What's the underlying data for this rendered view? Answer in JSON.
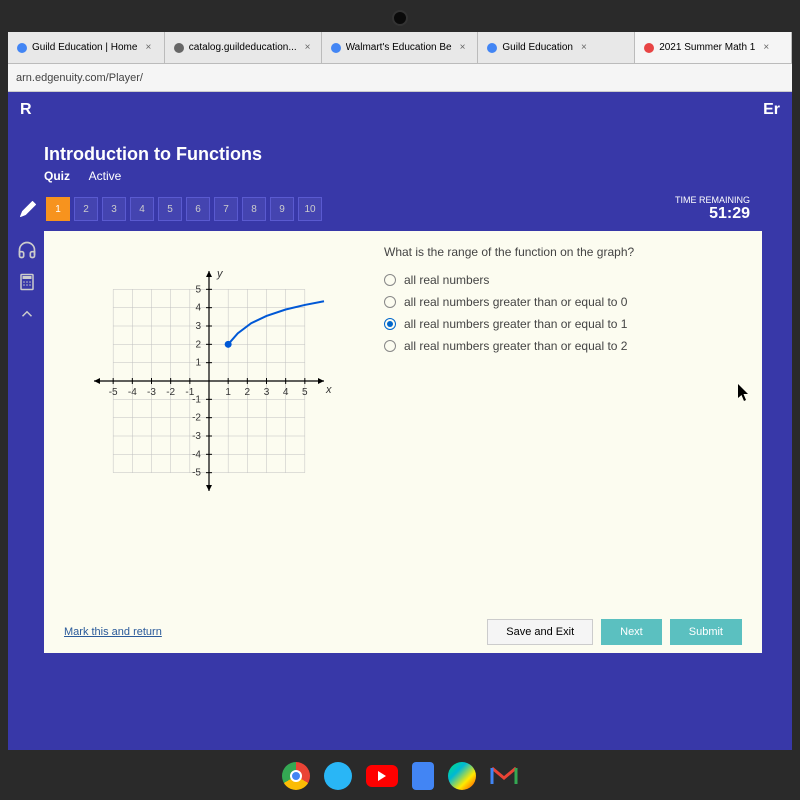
{
  "browser": {
    "tabs": [
      {
        "label": "Guild Education | Home",
        "icon_color": "#4285f4"
      },
      {
        "label": "catalog.guildeducation...",
        "icon_color": "#666"
      },
      {
        "label": "Walmart's Education Be",
        "icon_color": "#4285f4"
      },
      {
        "label": "Guild Education",
        "icon_color": "#4285f4"
      },
      {
        "label": "2021 Summer Math 1",
        "icon_color": "#e84545",
        "active": true
      }
    ],
    "url": "arn.edgenuity.com/Player/"
  },
  "navbar": {
    "left_label": "R",
    "right_label": "Er"
  },
  "quiz": {
    "title": "Introduction to Functions",
    "type_label": "Quiz",
    "status_label": "Active",
    "questions": [
      "1",
      "2",
      "3",
      "4",
      "5",
      "6",
      "7",
      "8",
      "9",
      "10"
    ],
    "current_question": 1,
    "timer_label": "TIME REMAINING",
    "timer_value": "51:29"
  },
  "graph": {
    "xmin": -6,
    "xmax": 6,
    "ymin": -6,
    "ymax": 6,
    "grid_color": "#c0c0c0",
    "axis_color": "#000000",
    "tick_labels_x": [
      -5,
      -4,
      -3,
      -2,
      -1,
      1,
      2,
      3,
      4,
      5
    ],
    "tick_labels_y": [
      -5,
      -4,
      -3,
      -2,
      -1,
      1,
      2,
      3,
      4,
      5
    ],
    "x_label": "x",
    "y_label": "y",
    "curve_color": "#0058d6",
    "curve_start": {
      "x": 1,
      "y": 2,
      "closed": true
    },
    "curve_path": [
      {
        "x": 1,
        "y": 2
      },
      {
        "x": 1.5,
        "y": 2.6
      },
      {
        "x": 2.2,
        "y": 3.15
      },
      {
        "x": 3,
        "y": 3.55
      },
      {
        "x": 4,
        "y": 3.9
      },
      {
        "x": 5,
        "y": 4.15
      },
      {
        "x": 6,
        "y": 4.35
      }
    ]
  },
  "question": {
    "text": "What is the range of the function on the graph?",
    "options": [
      "all real numbers",
      "all real numbers greater than or equal to 0",
      "all real numbers greater than or equal to 1",
      "all real numbers greater than or equal to 2"
    ],
    "selected": 2
  },
  "footer": {
    "mark_label": "Mark this and return",
    "save_exit_label": "Save and Exit",
    "next_label": "Next",
    "submit_label": "Submit"
  }
}
